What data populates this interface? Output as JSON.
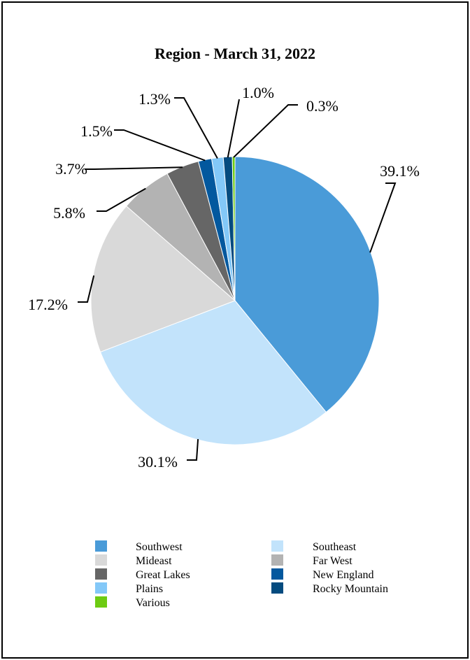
{
  "chart_data": {
    "type": "pie",
    "title": "Region - March 31, 2022",
    "slices": [
      {
        "label": "Southwest",
        "value": 39.1,
        "display": "39.1%",
        "color": "#4A9BD8"
      },
      {
        "label": "Southeast",
        "value": 30.1,
        "display": "30.1%",
        "color": "#C2E3FB"
      },
      {
        "label": "Mideast",
        "value": 17.2,
        "display": "17.2%",
        "color": "#D9D9D9"
      },
      {
        "label": "Far West",
        "value": 5.8,
        "display": "5.8%",
        "color": "#B3B3B3"
      },
      {
        "label": "Great Lakes",
        "value": 3.7,
        "display": "3.7%",
        "color": "#666666"
      },
      {
        "label": "New England",
        "value": 1.5,
        "display": "1.5%",
        "color": "#03589E"
      },
      {
        "label": "Plains",
        "value": 1.3,
        "display": "1.3%",
        "color": "#83C8F8"
      },
      {
        "label": "Rocky Mountain",
        "value": 1.0,
        "display": "1.0%",
        "color": "#044B7F"
      },
      {
        "label": "Various",
        "value": 0.3,
        "display": "0.3%",
        "color": "#6DCB12"
      }
    ],
    "legend_placement": "bottom",
    "legend_order": [
      "Southwest",
      "Southeast",
      "Mideast",
      "Far West",
      "Great Lakes",
      "New England",
      "Plains",
      "Rocky Mountain",
      "Various"
    ]
  }
}
